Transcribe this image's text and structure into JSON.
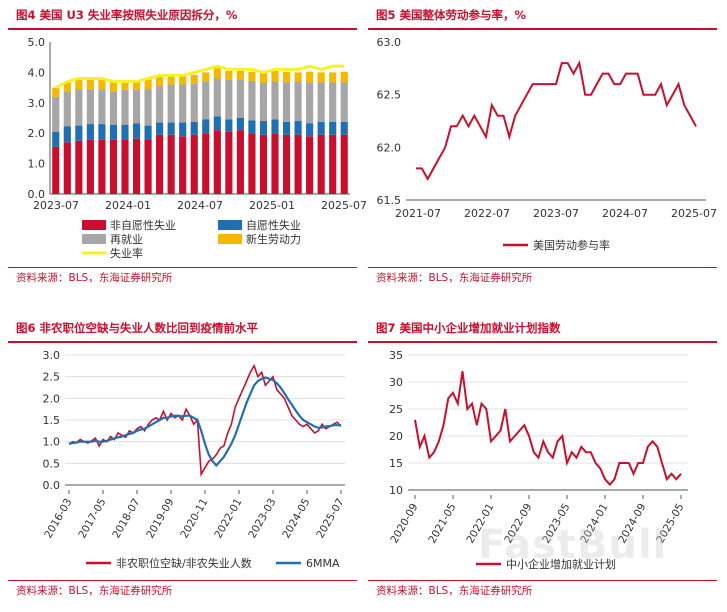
{
  "watermark": "FastBull",
  "panels": [
    {
      "id": "p4",
      "title": "图4  美国 U3 失业率按照失业原因拆分，%",
      "source": "资料来源：BLS，东海证券研究所"
    },
    {
      "id": "p5",
      "title": "图5  美国整体劳动参与率，%",
      "source": "资料来源：BLS，东海证券研究所"
    },
    {
      "id": "p6",
      "title": "图6  非农职位空缺与失业人数比回到疫情前水平",
      "source": "资料来源：BLS，东海证券研究所"
    },
    {
      "id": "p7",
      "title": "图7  美国中小企业增加就业计划指数",
      "source": "资料来源：BLS，东海证券研究所"
    }
  ],
  "chart_data": [
    {
      "id": "p4",
      "type": "bar",
      "stacked": true,
      "ylim": [
        0,
        5
      ],
      "yticks": [
        "0.0",
        "1.0",
        "2.0",
        "3.0",
        "4.0",
        "5.0"
      ],
      "x_tick_labels": [
        "2023-07",
        "2024-01",
        "2024-07",
        "2025-01",
        "2025-07"
      ],
      "n_bars": 26,
      "colors": {
        "job_losers": "#c8102e",
        "job_leavers": "#1f6fb2",
        "reentrants": "#a6a6a6",
        "new_entrants": "#f5b800",
        "rate": "#f7f12a"
      },
      "series": [
        {
          "name": "非自愿性失业",
          "key": "job_losers",
          "values": [
            1.55,
            1.7,
            1.75,
            1.78,
            1.8,
            1.78,
            1.8,
            1.82,
            1.8,
            1.95,
            1.95,
            1.9,
            1.95,
            2.0,
            2.1,
            2.05,
            2.1,
            2.0,
            1.95,
            2.0,
            1.95,
            1.95,
            1.9,
            1.95,
            1.95,
            1.95
          ]
        },
        {
          "name": "自愿性失业",
          "key": "job_leavers",
          "values": [
            0.5,
            0.52,
            0.5,
            0.52,
            0.5,
            0.5,
            0.48,
            0.5,
            0.45,
            0.4,
            0.4,
            0.45,
            0.42,
            0.45,
            0.45,
            0.4,
            0.4,
            0.42,
            0.45,
            0.45,
            0.42,
            0.45,
            0.42,
            0.42,
            0.42,
            0.42
          ]
        },
        {
          "name": "再就业",
          "key": "reentrants",
          "values": [
            1.15,
            1.15,
            1.2,
            1.15,
            1.15,
            1.1,
            1.15,
            1.1,
            1.2,
            1.2,
            1.25,
            1.25,
            1.25,
            1.25,
            1.25,
            1.3,
            1.25,
            1.3,
            1.25,
            1.25,
            1.3,
            1.3,
            1.35,
            1.3,
            1.3,
            1.3
          ]
        },
        {
          "name": "新生劳动力",
          "key": "new_entrants",
          "values": [
            0.3,
            0.3,
            0.3,
            0.32,
            0.3,
            0.32,
            0.3,
            0.32,
            0.32,
            0.3,
            0.32,
            0.32,
            0.3,
            0.3,
            0.35,
            0.3,
            0.3,
            0.3,
            0.35,
            0.35,
            0.35,
            0.3,
            0.35,
            0.33,
            0.33,
            0.35
          ]
        }
      ],
      "line": {
        "name": "失业率",
        "key": "rate",
        "values": [
          3.5,
          3.7,
          3.8,
          3.8,
          3.8,
          3.7,
          3.7,
          3.7,
          3.8,
          3.9,
          3.9,
          3.9,
          4.0,
          4.1,
          4.2,
          4.1,
          4.1,
          4.1,
          4.0,
          4.1,
          4.1,
          4.1,
          4.2,
          4.1,
          4.2,
          4.2
        ]
      },
      "legend": [
        {
          "name": "非自愿性失业",
          "key": "job_losers"
        },
        {
          "name": "自愿性失业",
          "key": "job_leavers"
        },
        {
          "name": "再就业",
          "key": "reentrants"
        },
        {
          "name": "新生劳动力",
          "key": "new_entrants"
        },
        {
          "name": "失业率",
          "key": "rate"
        }
      ]
    },
    {
      "id": "p5",
      "type": "line",
      "ylim": [
        61.5,
        63.0
      ],
      "yticks": [
        "61.5",
        "62.0",
        "62.5",
        "63.0"
      ],
      "x_tick_labels": [
        "2021-07",
        "2022-07",
        "2023-07",
        "2024-07",
        "2025-07"
      ],
      "color": "#c8102e",
      "series": [
        {
          "name": "美国劳动参与率",
          "values": [
            61.8,
            61.8,
            61.7,
            61.8,
            61.9,
            62.0,
            62.2,
            62.2,
            62.3,
            62.2,
            62.3,
            62.2,
            62.1,
            62.4,
            62.3,
            62.3,
            62.1,
            62.3,
            62.4,
            62.5,
            62.6,
            62.6,
            62.6,
            62.6,
            62.6,
            62.8,
            62.8,
            62.7,
            62.8,
            62.5,
            62.5,
            62.6,
            62.7,
            62.7,
            62.6,
            62.6,
            62.7,
            62.7,
            62.7,
            62.5,
            62.5,
            62.5,
            62.6,
            62.4,
            62.5,
            62.6,
            62.4,
            62.3,
            62.2
          ]
        }
      ]
    },
    {
      "id": "p6",
      "type": "line",
      "ylim": [
        0,
        3.0
      ],
      "yticks": [
        "0.0",
        "0.5",
        "1.0",
        "1.5",
        "2.0",
        "2.5",
        "3.0"
      ],
      "x_tick_labels": [
        "2016-03",
        "2017-05",
        "2018-07",
        "2019-09",
        "2020-11",
        "2022-01",
        "2023-03",
        "2024-05",
        "2025-07"
      ],
      "series": [
        {
          "name": "非农职位空缺/非农失业人数",
          "color": "#c8102e",
          "values": [
            0.95,
            1.0,
            0.98,
            1.05,
            1.0,
            0.97,
            1.02,
            1.08,
            0.9,
            1.05,
            1.0,
            1.12,
            1.05,
            1.2,
            1.15,
            1.1,
            1.25,
            1.2,
            1.3,
            1.35,
            1.25,
            1.4,
            1.5,
            1.55,
            1.5,
            1.7,
            1.5,
            1.65,
            1.55,
            1.6,
            1.5,
            1.75,
            1.6,
            1.4,
            1.5,
            0.25,
            0.4,
            0.55,
            0.6,
            0.7,
            0.85,
            0.9,
            1.2,
            1.4,
            1.8,
            2.0,
            2.2,
            2.4,
            2.6,
            2.75,
            2.5,
            2.6,
            2.3,
            2.4,
            2.5,
            2.2,
            2.1,
            2.0,
            1.8,
            1.6,
            1.5,
            1.4,
            1.35,
            1.4,
            1.3,
            1.2,
            1.25,
            1.4,
            1.3,
            1.35,
            1.4,
            1.45,
            1.35
          ]
        },
        {
          "name": "6MMA",
          "color": "#1f6fb2",
          "values": [
            0.95,
            0.97,
            0.98,
            1.0,
            1.0,
            1.0,
            1.0,
            1.02,
            1.0,
            1.0,
            1.02,
            1.05,
            1.07,
            1.1,
            1.12,
            1.15,
            1.18,
            1.2,
            1.25,
            1.28,
            1.3,
            1.35,
            1.4,
            1.45,
            1.5,
            1.55,
            1.55,
            1.58,
            1.6,
            1.6,
            1.58,
            1.6,
            1.6,
            1.55,
            1.5,
            1.25,
            0.95,
            0.7,
            0.55,
            0.45,
            0.55,
            0.65,
            0.8,
            0.95,
            1.15,
            1.4,
            1.65,
            1.9,
            2.1,
            2.3,
            2.4,
            2.45,
            2.48,
            2.45,
            2.42,
            2.35,
            2.25,
            2.12,
            1.98,
            1.85,
            1.72,
            1.6,
            1.5,
            1.45,
            1.4,
            1.35,
            1.32,
            1.33,
            1.35,
            1.36,
            1.38,
            1.38,
            1.38
          ]
        }
      ]
    },
    {
      "id": "p7",
      "type": "line",
      "ylim": [
        10,
        35
      ],
      "yticks": [
        "10",
        "15",
        "20",
        "25",
        "30",
        "35"
      ],
      "x_tick_labels": [
        "2020-09",
        "2021-05",
        "2022-01",
        "2022-09",
        "2023-05",
        "2024-01",
        "2024-09",
        "2025-05"
      ],
      "color": "#c8102e",
      "series": [
        {
          "name": "中小企业增加就业计划",
          "values": [
            23,
            18,
            20,
            16,
            17,
            19,
            22,
            27,
            28,
            26,
            32,
            25,
            26,
            22,
            26,
            25,
            19,
            20,
            21,
            25,
            19,
            20,
            21,
            22,
            20,
            17,
            16,
            19,
            17,
            16,
            19,
            20,
            15,
            17,
            16,
            18,
            17,
            17,
            15,
            14,
            12,
            11,
            12,
            15,
            15,
            15,
            13,
            15,
            15,
            18,
            19,
            18,
            15,
            12,
            13,
            12,
            13
          ]
        }
      ]
    }
  ]
}
